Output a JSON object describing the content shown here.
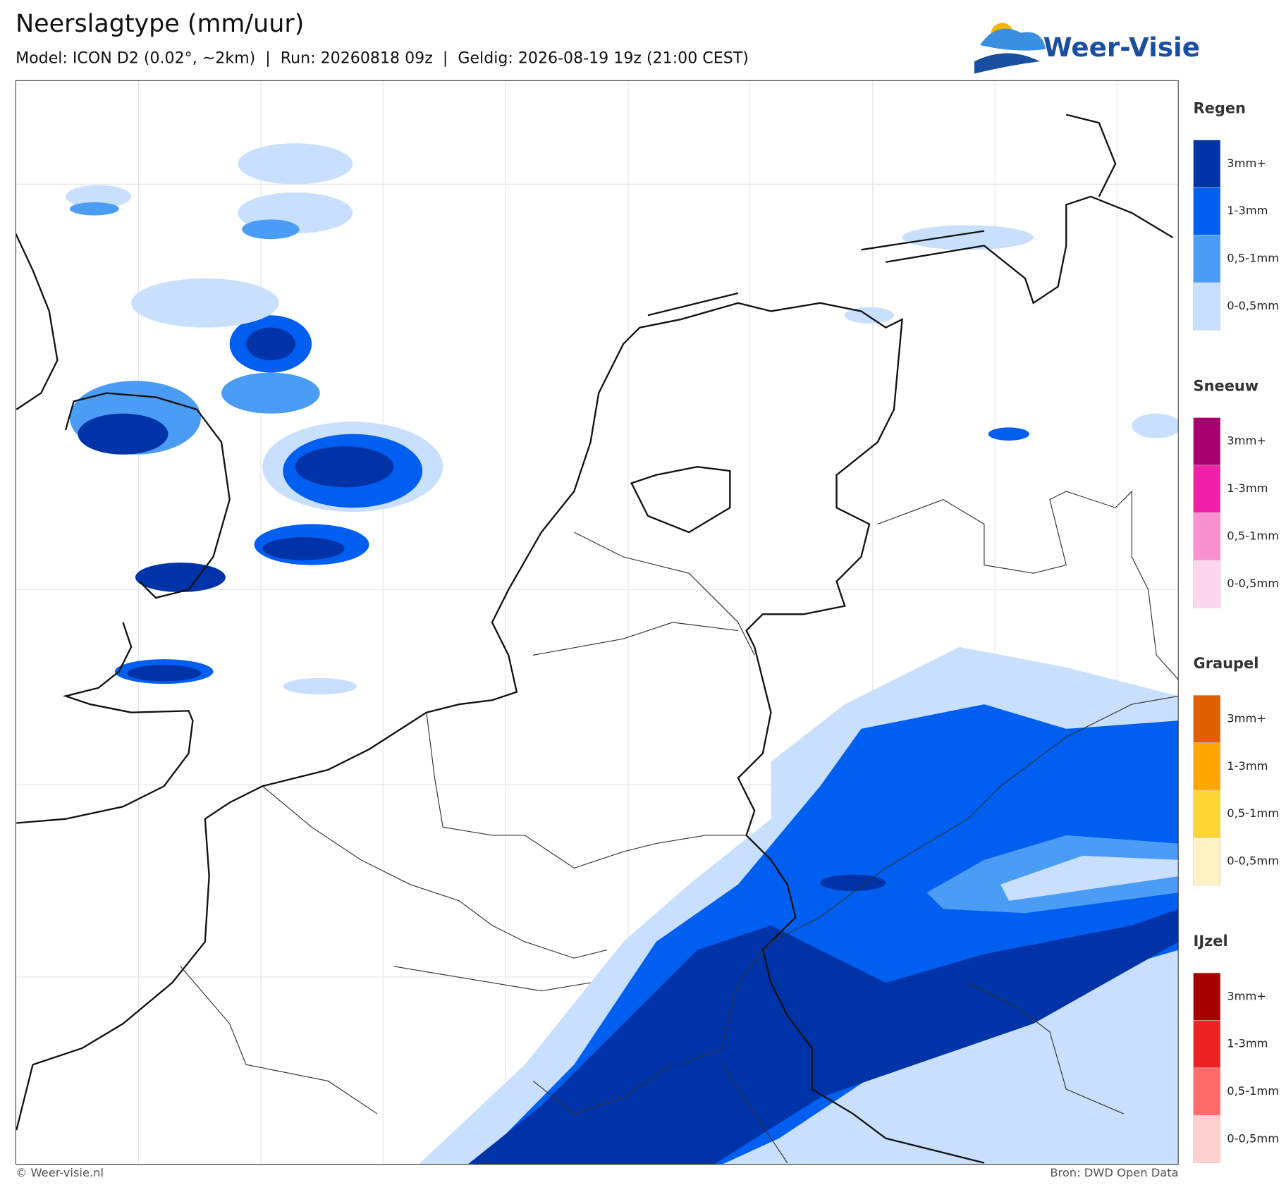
{
  "header": {
    "title": "Neerslagtype (mm/uur)",
    "subtitle": "Model: ICON D2 (0.02°, ~2km)  |  Run: 20260818 09z  |  Geldig: 2026-08-19 19z (21:00 CEST)"
  },
  "logo": {
    "text": "Weer-Visie"
  },
  "legend": {
    "groups": [
      {
        "title": "Regen",
        "items": [
          {
            "label": "3mm+",
            "color": "#0033a8"
          },
          {
            "label": "1-3mm",
            "color": "#005ff0"
          },
          {
            "label": "0,5-1mm",
            "color": "#4b9cf5"
          },
          {
            "label": "0-0,5mm",
            "color": "#c8e0fd"
          }
        ]
      },
      {
        "title": "Sneeuw",
        "items": [
          {
            "label": "3mm+",
            "color": "#a8006e"
          },
          {
            "label": "1-3mm",
            "color": "#f020a8"
          },
          {
            "label": "0,5-1mm",
            "color": "#f990cf"
          },
          {
            "label": "0-0,5mm",
            "color": "#fdd6ee"
          }
        ]
      },
      {
        "title": "Graupel",
        "items": [
          {
            "label": "3mm+",
            "color": "#e06000"
          },
          {
            "label": "1-3mm",
            "color": "#ffa500"
          },
          {
            "label": "0,5-1mm",
            "color": "#ffd633"
          },
          {
            "label": "0-0,5mm",
            "color": "#fff2c4"
          }
        ]
      },
      {
        "title": "IJzel",
        "items": [
          {
            "label": "3mm+",
            "color": "#a80000"
          },
          {
            "label": "1-3mm",
            "color": "#ee2222"
          },
          {
            "label": "0,5-1mm",
            "color": "#ff6b6b"
          },
          {
            "label": "0-0,5mm",
            "color": "#ffd0d0"
          }
        ]
      }
    ]
  },
  "footer": {
    "left": "© Weer-visie.nl",
    "right": "Bron: DWD Open Data"
  }
}
